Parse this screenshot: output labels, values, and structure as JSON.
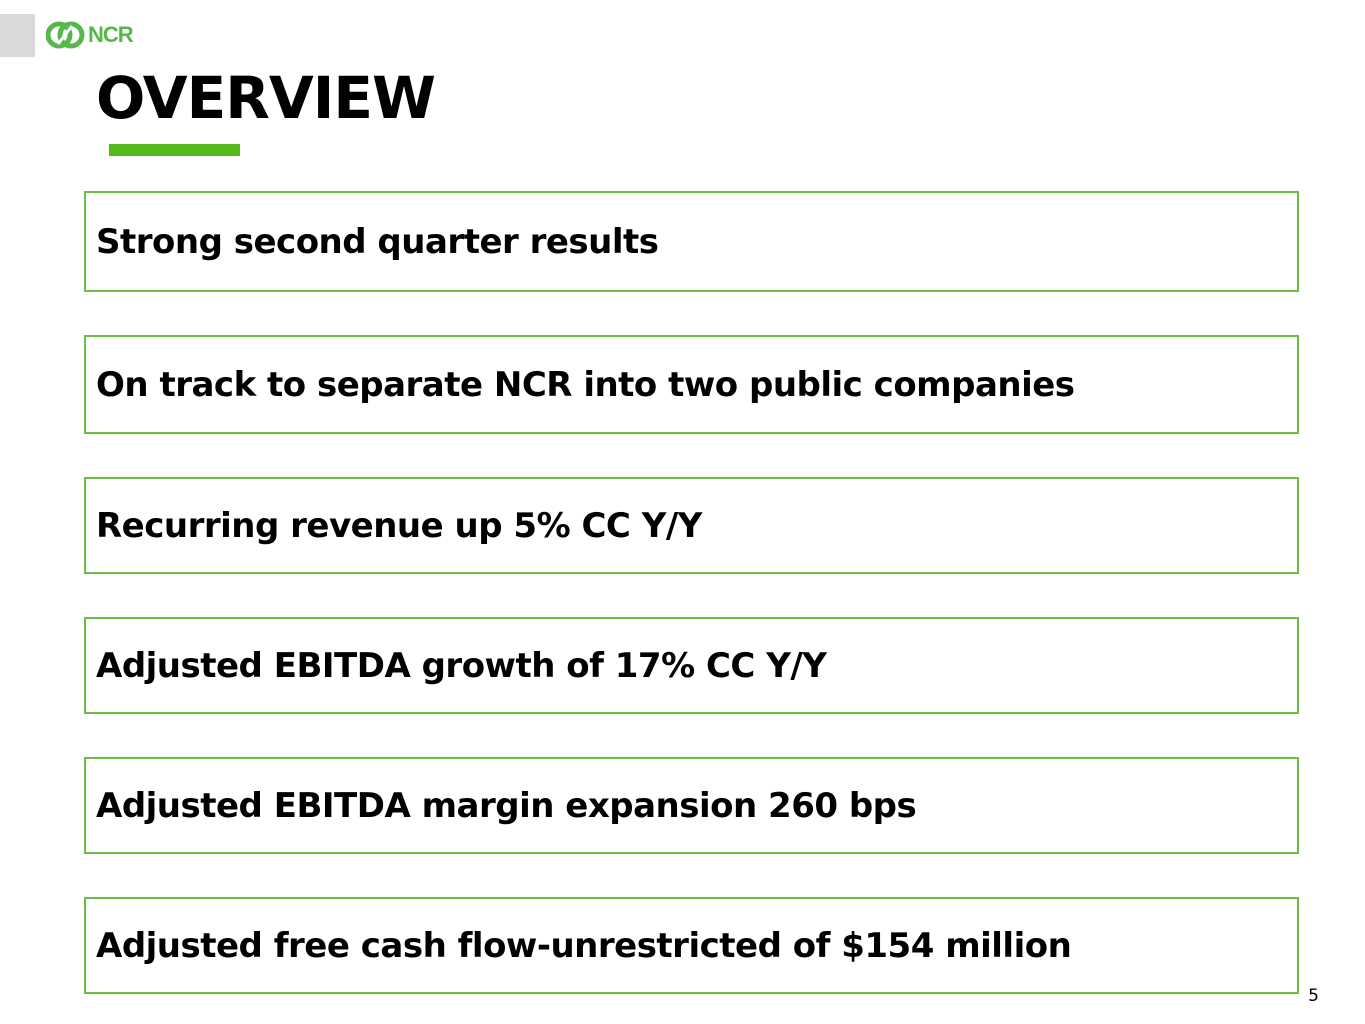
{
  "logo": {
    "text": "NCR"
  },
  "title": "OVERVIEW",
  "bullets": [
    "Strong second quarter results",
    "On track to separate NCR into two public companies",
    "Recurring revenue up 5% CC Y/Y",
    "Adjusted EBITDA growth of 17% CC Y/Y",
    "Adjusted EBITDA margin expansion 260 bps",
    "Adjusted free cash flow-unrestricted of $154 million"
  ],
  "page_number": "5",
  "colors": {
    "accent_green": "#54b919",
    "box_border": "#6cbd45",
    "logo_green": "#54b948"
  }
}
